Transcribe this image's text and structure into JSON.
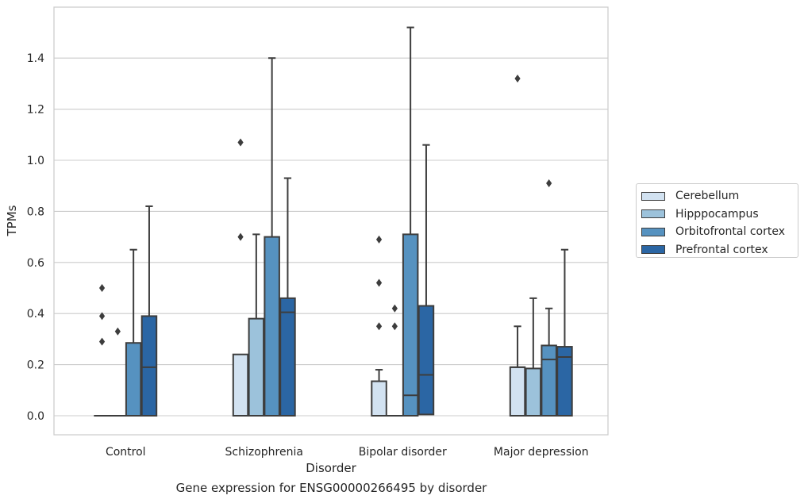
{
  "caption": "Gene expression for ENSG00000266495 by disorder",
  "chart_data": {
    "type": "box",
    "xlabel": "Disorder",
    "ylabel": "TPMs",
    "ylim": [
      -0.07,
      1.6
    ],
    "yticks": [
      0.0,
      0.2,
      0.4,
      0.6,
      0.8,
      1.0,
      1.2,
      1.4
    ],
    "grid": true,
    "legend_position": "right",
    "categories": [
      "Control",
      "Schizophrenia",
      "Bipolar disorder",
      "Major depression"
    ],
    "series": [
      {
        "name": "Cerebellum",
        "color": "#d2e2f1",
        "boxes": [
          {
            "q1": 0.0,
            "median": 0.0,
            "q3": 0.0,
            "whisker_low": 0.0,
            "whisker_high": 0.0,
            "outliers": [
              0.29,
              0.39,
              0.5
            ]
          },
          {
            "q1": 0.0,
            "median": 0.0,
            "q3": 0.24,
            "whisker_low": 0.0,
            "whisker_high": 0.24,
            "outliers": [
              0.7,
              1.07
            ]
          },
          {
            "q1": 0.0,
            "median": 0.0,
            "q3": 0.135,
            "whisker_low": 0.0,
            "whisker_high": 0.18,
            "outliers": [
              0.35,
              0.52,
              0.69
            ]
          },
          {
            "q1": 0.0,
            "median": 0.19,
            "q3": 0.19,
            "whisker_low": 0.0,
            "whisker_high": 0.35,
            "outliers": [
              1.32
            ]
          }
        ]
      },
      {
        "name": "Hipppocampus",
        "color": "#9cc2db",
        "boxes": [
          {
            "q1": 0.0,
            "median": 0.0,
            "q3": 0.0,
            "whisker_low": 0.0,
            "whisker_high": 0.0,
            "outliers": [
              0.33
            ]
          },
          {
            "q1": 0.0,
            "median": 0.0,
            "q3": 0.38,
            "whisker_low": 0.0,
            "whisker_high": 0.71,
            "outliers": []
          },
          {
            "q1": 0.0,
            "median": 0.0,
            "q3": 0.0,
            "whisker_low": 0.0,
            "whisker_high": 0.0,
            "outliers": [
              0.35,
              0.42
            ]
          },
          {
            "q1": 0.0,
            "median": 0.0,
            "q3": 0.185,
            "whisker_low": 0.0,
            "whisker_high": 0.46,
            "outliers": []
          }
        ]
      },
      {
        "name": "Orbitofrontal cortex",
        "color": "#5692c0",
        "boxes": [
          {
            "q1": 0.0,
            "median": 0.0,
            "q3": 0.285,
            "whisker_low": 0.0,
            "whisker_high": 0.65,
            "outliers": []
          },
          {
            "q1": 0.0,
            "median": 0.0,
            "q3": 0.7,
            "whisker_low": 0.0,
            "whisker_high": 1.4,
            "outliers": []
          },
          {
            "q1": 0.0,
            "median": 0.08,
            "q3": 0.71,
            "whisker_low": 0.0,
            "whisker_high": 1.52,
            "outliers": []
          },
          {
            "q1": 0.0,
            "median": 0.22,
            "q3": 0.275,
            "whisker_low": 0.0,
            "whisker_high": 0.42,
            "outliers": [
              0.91
            ]
          }
        ]
      },
      {
        "name": "Prefrontal cortex",
        "color": "#2b66a4",
        "boxes": [
          {
            "q1": 0.0,
            "median": 0.19,
            "q3": 0.39,
            "whisker_low": 0.0,
            "whisker_high": 0.82,
            "outliers": []
          },
          {
            "q1": 0.0,
            "median": 0.405,
            "q3": 0.46,
            "whisker_low": 0.0,
            "whisker_high": 0.93,
            "outliers": []
          },
          {
            "q1": 0.005,
            "median": 0.16,
            "q3": 0.43,
            "whisker_low": 0.0,
            "whisker_high": 1.06,
            "outliers": []
          },
          {
            "q1": 0.0,
            "median": 0.23,
            "q3": 0.27,
            "whisker_low": 0.0,
            "whisker_high": 0.65,
            "outliers": []
          }
        ]
      }
    ]
  }
}
